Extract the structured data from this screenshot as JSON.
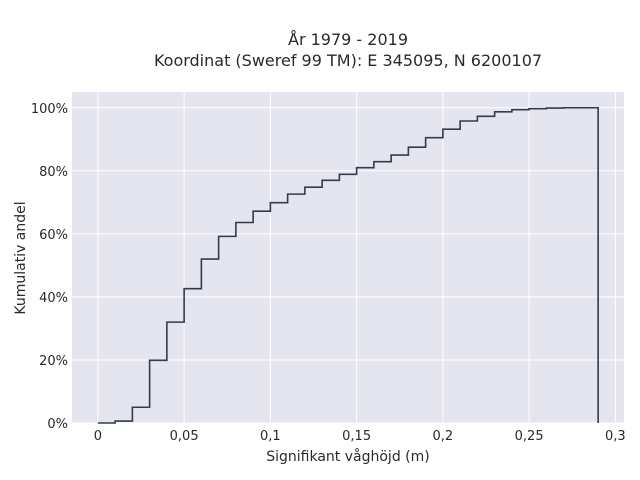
{
  "chart_data": {
    "type": "line",
    "title_lines": [
      "År 1979 - 2019",
      "Koordinat (Sweref 99 TM): E 345095, N 6200107"
    ],
    "xlabel": "Signifikant våghöjd (m)",
    "ylabel": "Kumulativ andel",
    "xlim": [
      -0.015,
      0.305
    ],
    "ylim": [
      0,
      1.05
    ],
    "x_ticks": [
      0,
      0.05,
      0.1,
      0.15,
      0.2,
      0.25,
      0.3
    ],
    "x_tick_labels": [
      "0",
      "0,05",
      "0,1",
      "0,15",
      "0,2",
      "0,25",
      "0,3"
    ],
    "y_ticks": [
      0,
      0.2,
      0.4,
      0.6,
      0.8,
      1.0
    ],
    "y_tick_labels": [
      "0%",
      "20%",
      "40%",
      "60%",
      "80%",
      "100%"
    ],
    "grid": true,
    "line_color": "#2f3d4f",
    "background_color": "#e5e5ef",
    "series": [
      {
        "step": "post",
        "x": [
          0,
          0.01,
          0.02,
          0.03,
          0.04,
          0.05,
          0.06,
          0.07,
          0.08,
          0.09,
          0.1,
          0.11,
          0.12,
          0.13,
          0.14,
          0.15,
          0.16,
          0.17,
          0.18,
          0.19,
          0.2,
          0.21,
          0.22,
          0.23,
          0.24,
          0.25,
          0.26,
          0.27,
          0.28,
          0.29
        ],
        "y": [
          0.0,
          0.006,
          0.05,
          0.199,
          0.32,
          0.426,
          0.52,
          0.592,
          0.636,
          0.672,
          0.699,
          0.726,
          0.748,
          0.77,
          0.789,
          0.81,
          0.829,
          0.85,
          0.875,
          0.905,
          0.932,
          0.958,
          0.973,
          0.987,
          0.994,
          0.997,
          0.999,
          1.0,
          1.0,
          0.0
        ]
      }
    ]
  }
}
